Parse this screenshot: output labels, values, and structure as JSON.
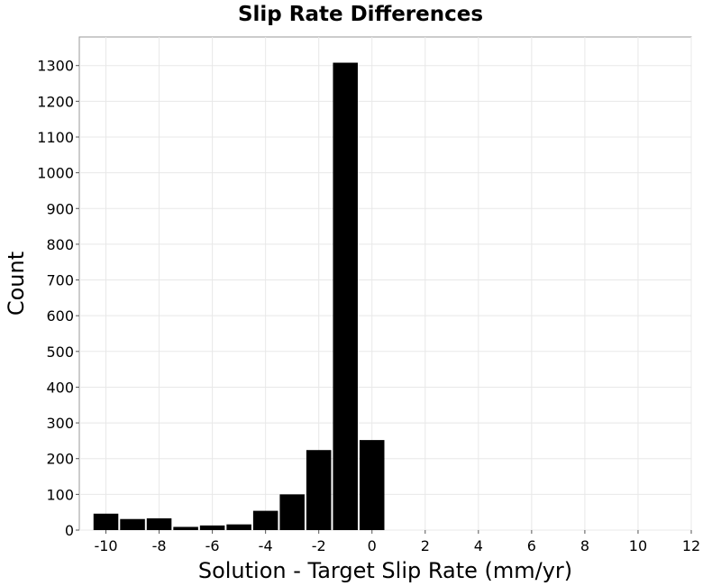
{
  "chart_data": {
    "type": "bar",
    "title": "Slip Rate Differences",
    "xlabel": "Solution - Target Slip Rate (mm/yr)",
    "ylabel": "Count",
    "xlim": [
      -11,
      12
    ],
    "ylim": [
      0,
      1380
    ],
    "bin_width": 1,
    "xticks": [
      -10,
      -8,
      -6,
      -4,
      -2,
      0,
      2,
      4,
      6,
      8,
      10,
      12
    ],
    "xtick_labels": [
      "-10",
      "-8",
      "-6",
      "-4",
      "-2",
      "0",
      "2",
      "4",
      "6",
      "8",
      "10",
      "12"
    ],
    "yticks": [
      0,
      100,
      200,
      300,
      400,
      500,
      600,
      700,
      800,
      900,
      1000,
      1100,
      1200,
      1300
    ],
    "ytick_labels": [
      "0",
      "100",
      "200",
      "300",
      "400",
      "500",
      "600",
      "700",
      "800",
      "900",
      "1000",
      "1100",
      "1200",
      "1300"
    ],
    "grid": true,
    "color": "#000000",
    "bins": [
      -10,
      -9,
      -8,
      -7,
      -6,
      -5,
      -4,
      -3,
      -2,
      -1,
      0
    ],
    "values": [
      46,
      31,
      33,
      9,
      13,
      16,
      54,
      100,
      224,
      1308,
      252
    ]
  }
}
